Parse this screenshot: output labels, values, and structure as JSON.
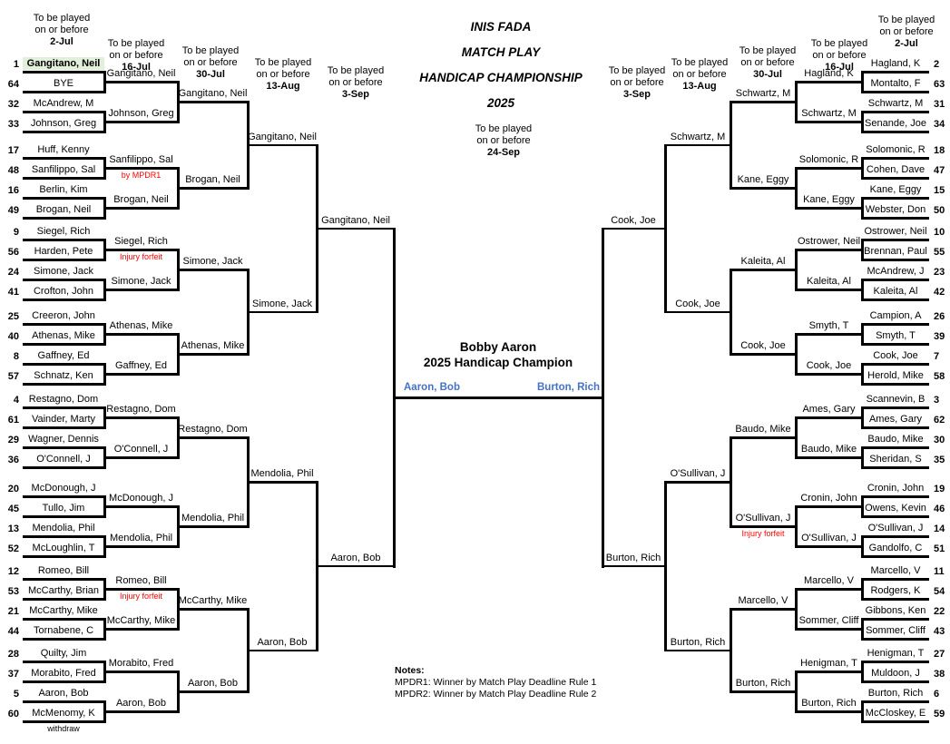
{
  "title_lines": [
    "INIS FADA",
    "MATCH PLAY",
    "HANDICAP CHAMPIONSHIP",
    "2025"
  ],
  "deadline_center": {
    "line1": "To be played",
    "line2": "on or before",
    "date": "24-Sep"
  },
  "round_deadline_prefix": [
    "To be played",
    "on or before"
  ],
  "round_dates_left": [
    "2-Jul",
    "16-Jul",
    "30-Jul",
    "13-Aug",
    "3-Sep"
  ],
  "round_dates_right": [
    "3-Sep",
    "13-Aug",
    "30-Jul",
    "16-Jul",
    "2-Jul"
  ],
  "champion": {
    "line1": "Bobby Aaron",
    "line2": "2025 Handicap Champion"
  },
  "final": {
    "left_player": "Aaron, Bob",
    "right_player": "Burton, Rich"
  },
  "notes": {
    "heading": "Notes:",
    "items": [
      "MPDR1: Winner by Match Play Deadline Rule 1",
      "MPDR2: Winner by Match Play Deadline Rule 2"
    ]
  },
  "colors": {
    "line": "#000000",
    "note_red": "#FF0000",
    "final_blue": "#4472C4",
    "seed1_highlight": "#E2EFDA"
  },
  "bracket": {
    "left": {
      "round1": [
        {
          "seed": 1,
          "name": "Gangitano, Neil",
          "highlight": true,
          "bold": true
        },
        {
          "seed": 64,
          "name": "BYE"
        },
        {
          "seed": 32,
          "name": "McAndrew, M"
        },
        {
          "seed": 33,
          "name": "Johnson, Greg"
        },
        {
          "seed": 17,
          "name": "Huff, Kenny"
        },
        {
          "seed": 48,
          "name": "Sanfilippo, Sal"
        },
        {
          "seed": 16,
          "name": "Berlin, Kim"
        },
        {
          "seed": 49,
          "name": "Brogan, Neil"
        },
        {
          "seed": 9,
          "name": "Siegel, Rich"
        },
        {
          "seed": 56,
          "name": "Harden, Pete"
        },
        {
          "seed": 24,
          "name": "Simone, Jack"
        },
        {
          "seed": 41,
          "name": "Crofton, John"
        },
        {
          "seed": 25,
          "name": "Creeron, John"
        },
        {
          "seed": 40,
          "name": "Athenas, Mike"
        },
        {
          "seed": 8,
          "name": "Gaffney, Ed"
        },
        {
          "seed": 57,
          "name": "Schnatz, Ken"
        },
        {
          "seed": 4,
          "name": "Restagno, Dom"
        },
        {
          "seed": 61,
          "name": "Vainder, Marty"
        },
        {
          "seed": 29,
          "name": "Wagner, Dennis"
        },
        {
          "seed": 36,
          "name": "O'Connell, J"
        },
        {
          "seed": 20,
          "name": "McDonough, J"
        },
        {
          "seed": 45,
          "name": "Tullo, Jim"
        },
        {
          "seed": 13,
          "name": "Mendolia, Phil"
        },
        {
          "seed": 52,
          "name": "McLoughlin, T"
        },
        {
          "seed": 12,
          "name": "Romeo, Bill"
        },
        {
          "seed": 53,
          "name": "McCarthy, Brian"
        },
        {
          "seed": 21,
          "name": "McCarthy, Mike"
        },
        {
          "seed": 44,
          "name": "Tornabene, C"
        },
        {
          "seed": 28,
          "name": "Quilty, Jim"
        },
        {
          "seed": 37,
          "name": "Morabito, Fred"
        },
        {
          "seed": 5,
          "name": "Aaron, Bob"
        },
        {
          "seed": 60,
          "name": "McMenomy, K",
          "note": "withdraw",
          "note_style": "black"
        }
      ],
      "round2": [
        {
          "name": "Gangitano, Neil"
        },
        {
          "name": "Johnson, Greg"
        },
        {
          "name": "Sanfilippo, Sal",
          "note": "by MPDR1",
          "note_style": "red"
        },
        {
          "name": "Brogan, Neil"
        },
        {
          "name": "Siegel, Rich",
          "note": "Injury forfeit",
          "note_style": "red"
        },
        {
          "name": "Simone, Jack"
        },
        {
          "name": "Athenas, Mike"
        },
        {
          "name": "Gaffney, Ed"
        },
        {
          "name": "Restagno, Dom"
        },
        {
          "name": "O'Connell, J"
        },
        {
          "name": "McDonough, J"
        },
        {
          "name": "Mendolia, Phil"
        },
        {
          "name": "Romeo, Bill",
          "note": "Injury forfeit",
          "note_style": "red"
        },
        {
          "name": "McCarthy, Mike"
        },
        {
          "name": "Morabito, Fred"
        },
        {
          "name": "Aaron, Bob"
        }
      ],
      "round3": [
        {
          "name": "Gangitano, Neil"
        },
        {
          "name": "Brogan, Neil"
        },
        {
          "name": "Simone, Jack"
        },
        {
          "name": "Athenas, Mike"
        },
        {
          "name": "Restagno, Dom"
        },
        {
          "name": "Mendolia, Phil"
        },
        {
          "name": "McCarthy, Mike"
        },
        {
          "name": "Aaron, Bob"
        }
      ],
      "round4": [
        {
          "name": "Gangitano, Neil"
        },
        {
          "name": "Simone, Jack"
        },
        {
          "name": "Mendolia, Phil"
        },
        {
          "name": "Aaron, Bob"
        }
      ],
      "round5": [
        {
          "name": "Gangitano, Neil"
        },
        {
          "name": "Aaron, Bob"
        }
      ]
    },
    "right": {
      "round1": [
        {
          "seed": 2,
          "name": "Hagland, K"
        },
        {
          "seed": 63,
          "name": "Montalto, F"
        },
        {
          "seed": 31,
          "name": "Schwartz, M"
        },
        {
          "seed": 34,
          "name": "Senande, Joe"
        },
        {
          "seed": 18,
          "name": "Solomonic, R"
        },
        {
          "seed": 47,
          "name": "Cohen, Dave"
        },
        {
          "seed": 15,
          "name": "Kane, Eggy"
        },
        {
          "seed": 50,
          "name": "Webster, Don"
        },
        {
          "seed": 10,
          "name": "Ostrower, Neil"
        },
        {
          "seed": 55,
          "name": "Brennan, Paul"
        },
        {
          "seed": 23,
          "name": "McAndrew, J"
        },
        {
          "seed": 42,
          "name": "Kaleita, Al"
        },
        {
          "seed": 26,
          "name": "Campion, A"
        },
        {
          "seed": 39,
          "name": "Smyth, T"
        },
        {
          "seed": 7,
          "name": "Cook, Joe"
        },
        {
          "seed": 58,
          "name": "Herold, Mike"
        },
        {
          "seed": 3,
          "name": "Scannevin, B"
        },
        {
          "seed": 62,
          "name": "Ames, Gary"
        },
        {
          "seed": 30,
          "name": "Baudo, Mike"
        },
        {
          "seed": 35,
          "name": "Sheridan, S"
        },
        {
          "seed": 19,
          "name": "Cronin, John"
        },
        {
          "seed": 46,
          "name": "Owens, Kevin"
        },
        {
          "seed": 14,
          "name": "O'Sullivan, J"
        },
        {
          "seed": 51,
          "name": "Gandolfo, C"
        },
        {
          "seed": 11,
          "name": "Marcello, V"
        },
        {
          "seed": 54,
          "name": "Rodgers, K"
        },
        {
          "seed": 22,
          "name": "Gibbons, Ken"
        },
        {
          "seed": 43,
          "name": "Sommer, Cliff"
        },
        {
          "seed": 27,
          "name": "Henigman, T"
        },
        {
          "seed": 38,
          "name": "Muldoon, J"
        },
        {
          "seed": 6,
          "name": "Burton, Rich"
        },
        {
          "seed": 59,
          "name": "McCloskey, E"
        }
      ],
      "round2": [
        {
          "name": "Hagland, K"
        },
        {
          "name": "Schwartz, M"
        },
        {
          "name": "Solomonic, R"
        },
        {
          "name": "Kane, Eggy"
        },
        {
          "name": "Ostrower, Neil"
        },
        {
          "name": "Kaleita, Al"
        },
        {
          "name": "Smyth, T"
        },
        {
          "name": "Cook, Joe"
        },
        {
          "name": "Ames, Gary"
        },
        {
          "name": "Baudo, Mike"
        },
        {
          "name": "Cronin, John"
        },
        {
          "name": "O'Sullivan, J"
        },
        {
          "name": "Marcello, V"
        },
        {
          "name": "Sommer, Cliff"
        },
        {
          "name": "Henigman, T"
        },
        {
          "name": "Burton, Rich"
        }
      ],
      "round3": [
        {
          "name": "Schwartz, M"
        },
        {
          "name": "Kane, Eggy"
        },
        {
          "name": "Kaleita, Al"
        },
        {
          "name": "Cook, Joe"
        },
        {
          "name": "Baudo, Mike"
        },
        {
          "name": "O'Sullivan, J",
          "note": "Injury forfeit",
          "note_style": "red"
        },
        {
          "name": "Marcello, V"
        },
        {
          "name": "Burton, Rich"
        }
      ],
      "round4": [
        {
          "name": "Schwartz, M"
        },
        {
          "name": "Cook, Joe"
        },
        {
          "name": "O'Sullivan, J"
        },
        {
          "name": "Burton, Rich"
        }
      ],
      "round5": [
        {
          "name": "Cook, Joe"
        },
        {
          "name": "Burton, Rich"
        }
      ]
    }
  }
}
